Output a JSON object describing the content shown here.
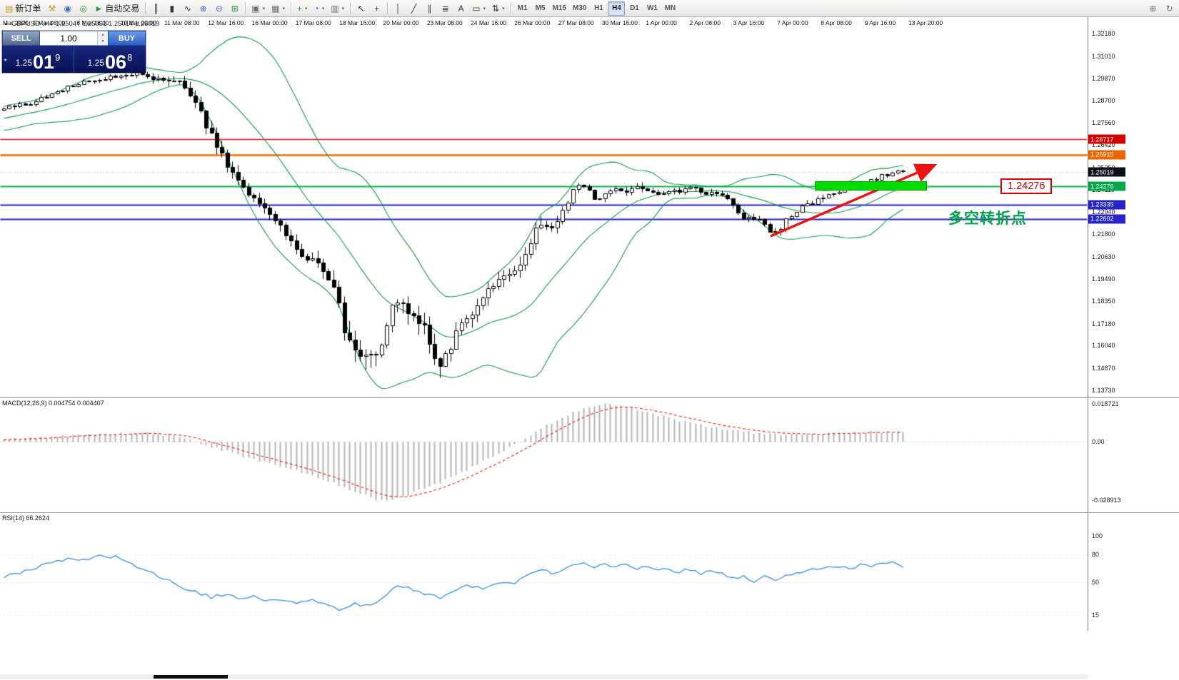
{
  "toolbar": {
    "new_order_label": "新订单",
    "autotrading_label": "自动交易",
    "timeframes": [
      "M1",
      "M5",
      "M15",
      "M30",
      "H1",
      "H4",
      "D1",
      "W1",
      "MN"
    ],
    "active_timeframe": "H4"
  },
  "icons": {
    "new_order": "▤",
    "hammer": "⚒",
    "community": "◉",
    "mql": "◎",
    "play": "►",
    "chart_bars": "║",
    "chart_candles": "▮",
    "chart_line": "∿",
    "zoom_in": "⊕",
    "zoom_out": "⊖",
    "tile": "⊞",
    "new_chart": "▣",
    "profiles": "▦",
    "indicators": "+",
    "periods": "◔",
    "templates": "▥",
    "cursor": "↖",
    "crosshair": "+",
    "vline": "│",
    "trendline": "╱",
    "channel": "∥",
    "fibo": "≣",
    "text_tool": "A",
    "shapes": "▭",
    "arrows": "⇅",
    "search": "⊕",
    "refresh": "↻",
    "collapse": "▲",
    "dropdown": "▾",
    "spin_up": "▲",
    "spin_down": "▼",
    "marker": "◂"
  },
  "chart": {
    "title": "GBPUSD-,H4",
    "quotes": "1.25047 1.25051 1.25014 1.25019"
  },
  "trade_panel": {
    "sell_label": "SELL",
    "buy_label": "BUY",
    "volume": "1.00",
    "sell_price_main": "1.25",
    "sell_price_big": "01",
    "sell_price_sup": "9",
    "buy_price_main": "1.25",
    "buy_price_big": "06",
    "buy_price_sup": "8"
  },
  "annotations": {
    "level_label": "1.24276",
    "turning_point": "多空转折点"
  },
  "main_axis_ticks": [
    "1.32180",
    "1.31010",
    "1.29870",
    "1.28700",
    "1.27560",
    "1.26420",
    "1.25250",
    "1.24110",
    "1.22940",
    "1.21800",
    "1.20630",
    "1.19490",
    "1.18350",
    "1.17180",
    "1.16040",
    "1.14870",
    "1.13730"
  ],
  "hlines": [
    {
      "price": 1.26717,
      "label": "1.26717",
      "color": "#ff1010",
      "tag": "#d40000",
      "w": 1.6
    },
    {
      "price": 1.25915,
      "label": "1.25915",
      "color": "#f06a00",
      "tag": "#ec6500",
      "w": 2.6
    },
    {
      "price": 1.24276,
      "label": "1.24276",
      "color": "#00bb4e",
      "tag": "#00a846",
      "w": 2.2
    },
    {
      "price": 1.23335,
      "label": "1.23335",
      "color": "#2222cc",
      "tag": "#2626c8",
      "w": 2.2
    },
    {
      "price": 1.22602,
      "label": "1.22602",
      "color": "#2222cc",
      "tag": "#2626c8",
      "w": 2.2
    }
  ],
  "current_price": {
    "label": "1.25019",
    "price": 1.25019,
    "tag": "#0d1118"
  },
  "macd": {
    "label": "MACD(12,26,9) 0.004754 0.004407",
    "axis": [
      {
        "t": "0.018721",
        "v": 0.018721
      },
      {
        "t": "0.00",
        "v": 0
      },
      {
        "t": "-0.028913",
        "v": -0.028913
      }
    ]
  },
  "rsi": {
    "label": "RSI(14) 66.2624",
    "axis": [
      {
        "t": "100",
        "v": 100
      },
      {
        "t": "80",
        "v": 80
      },
      {
        "t": "50",
        "v": 50
      },
      {
        "t": "15",
        "v": 15
      }
    ]
  },
  "time_axis": [
    "Mar 2020",
    "5 Mar 08:00",
    "6 Mar 16:00",
    "10 Mar 00:00",
    "11 Mar 08:00",
    "12 Mar 16:00",
    "16 Mar 00:00",
    "17 Mar 08:00",
    "18 Mar 16:00",
    "20 Mar 00:00",
    "23 Mar 08:00",
    "24 Mar 16:00",
    "26 Mar 00:00",
    "27 Mar 08:00",
    "30 Mar 16:00",
    "1 Apr 00:00",
    "2 Apr 08:00",
    "3 Apr 16:00",
    "7 Apr 00:00",
    "8 Apr 08:00",
    "9 Apr 16:00",
    "13 Apr 20:00"
  ],
  "chart_data": {
    "type": "candlestick",
    "symbol": "GBPUSD",
    "timeframe": "H4",
    "ohlc_current": {
      "open": 1.25047,
      "high": 1.25051,
      "low": 1.25014,
      "close": 1.25019
    },
    "bid": "1.25019",
    "ask": "1.25068",
    "price_axis_range": [
      1.1373,
      1.3218
    ],
    "colors": {
      "bollinger": "#0c9a4c",
      "candle_up": "#ffffff",
      "candle_down": "#000000",
      "candle_border": "#000000",
      "macd_hist": "#b4b4b4",
      "macd_signal": "#ff1414",
      "rsi_line": "#2f8fe8"
    },
    "bollinger": {
      "period": 20,
      "deviation": 2
    },
    "price_path_anchors": [
      [
        -150,
        1.272
      ],
      [
        0,
        1.283
      ],
      [
        20,
        1.2846
      ],
      [
        40,
        1.2856
      ],
      [
        60,
        1.289
      ],
      [
        80,
        1.2915
      ],
      [
        100,
        1.295
      ],
      [
        120,
        1.2972
      ],
      [
        140,
        1.2985
      ],
      [
        160,
        1.2995
      ],
      [
        180,
        1.3008
      ],
      [
        195,
        1.302
      ],
      [
        205,
        1.3
      ],
      [
        215,
        1.2985
      ],
      [
        228,
        1.2975
      ],
      [
        240,
        1.2988
      ],
      [
        252,
        1.2958
      ],
      [
        262,
        1.293
      ],
      [
        272,
        1.288
      ],
      [
        282,
        1.28
      ],
      [
        292,
        1.272
      ],
      [
        302,
        1.264
      ],
      [
        312,
        1.2575
      ],
      [
        322,
        1.251
      ],
      [
        332,
        1.2465
      ],
      [
        342,
        1.2425
      ],
      [
        352,
        1.2385
      ],
      [
        362,
        1.235
      ],
      [
        372,
        1.232
      ],
      [
        382,
        1.2285
      ],
      [
        392,
        1.2225
      ],
      [
        402,
        1.2165
      ],
      [
        412,
        1.2115
      ],
      [
        422,
        1.208
      ],
      [
        432,
        1.2062
      ],
      [
        442,
        1.2035
      ],
      [
        452,
        1.1995
      ],
      [
        462,
        1.1945
      ],
      [
        472,
        1.183
      ],
      [
        482,
        1.169
      ],
      [
        492,
        1.1605
      ],
      [
        502,
        1.1565
      ],
      [
        512,
        1.155
      ],
      [
        522,
        1.1575
      ],
      [
        532,
        1.1615
      ],
      [
        542,
        1.172
      ],
      [
        552,
        1.184
      ],
      [
        562,
        1.1805
      ],
      [
        572,
        1.1772
      ],
      [
        582,
        1.175
      ],
      [
        592,
        1.1705
      ],
      [
        602,
        1.1612
      ],
      [
        612,
        1.1528
      ],
      [
        618,
        1.1495
      ],
      [
        626,
        1.156
      ],
      [
        636,
        1.1655
      ],
      [
        646,
        1.1718
      ],
      [
        656,
        1.1762
      ],
      [
        666,
        1.1815
      ],
      [
        676,
        1.185
      ],
      [
        686,
        1.1898
      ],
      [
        696,
        1.1945
      ],
      [
        706,
        1.1978
      ],
      [
        716,
        1.1952
      ],
      [
        726,
        1.2008
      ],
      [
        736,
        1.2075
      ],
      [
        746,
        1.2175
      ],
      [
        756,
        1.2255
      ],
      [
        766,
        1.2238
      ],
      [
        776,
        1.2212
      ],
      [
        786,
        1.2278
      ],
      [
        796,
        1.2375
      ],
      [
        806,
        1.2438
      ],
      [
        816,
        1.242
      ],
      [
        826,
        1.2392
      ],
      [
        836,
        1.2362
      ],
      [
        846,
        1.2388
      ],
      [
        856,
        1.24
      ],
      [
        866,
        1.2408
      ],
      [
        876,
        1.2398
      ],
      [
        886,
        1.2418
      ],
      [
        896,
        1.2428
      ],
      [
        906,
        1.2402
      ],
      [
        916,
        1.239
      ],
      [
        926,
        1.24
      ],
      [
        936,
        1.2408
      ],
      [
        946,
        1.2398
      ],
      [
        956,
        1.2418
      ],
      [
        966,
        1.2428
      ],
      [
        976,
        1.2418
      ],
      [
        986,
        1.24
      ],
      [
        996,
        1.239
      ],
      [
        1006,
        1.2394
      ],
      [
        1016,
        1.2368
      ],
      [
        1026,
        1.233
      ],
      [
        1036,
        1.2282
      ],
      [
        1046,
        1.2262
      ],
      [
        1056,
        1.227
      ],
      [
        1066,
        1.2242
      ],
      [
        1076,
        1.2202
      ],
      [
        1086,
        1.2182
      ],
      [
        1096,
        1.2228
      ],
      [
        1106,
        1.2278
      ],
      [
        1116,
        1.2308
      ],
      [
        1126,
        1.2328
      ],
      [
        1136,
        1.234
      ],
      [
        1146,
        1.2358
      ],
      [
        1156,
        1.2378
      ],
      [
        1166,
        1.239
      ],
      [
        1176,
        1.24
      ],
      [
        1186,
        1.2418
      ],
      [
        1196,
        1.2428
      ],
      [
        1206,
        1.2438
      ],
      [
        1216,
        1.2448
      ],
      [
        1226,
        1.2468
      ],
      [
        1236,
        1.2488
      ],
      [
        1246,
        1.2498
      ],
      [
        1256,
        1.2508
      ],
      [
        1266,
        1.2502
      ]
    ],
    "volatility_anchors": [
      [
        -150,
        0.003
      ],
      [
        0,
        0.003
      ],
      [
        120,
        0.0032
      ],
      [
        200,
        0.004
      ],
      [
        280,
        0.0075
      ],
      [
        360,
        0.007
      ],
      [
        430,
        0.0075
      ],
      [
        470,
        0.0115
      ],
      [
        510,
        0.015
      ],
      [
        550,
        0.014
      ],
      [
        600,
        0.0125
      ],
      [
        640,
        0.01
      ],
      [
        700,
        0.008
      ],
      [
        745,
        0.01
      ],
      [
        800,
        0.0065
      ],
      [
        860,
        0.0042
      ],
      [
        940,
        0.004
      ],
      [
        1010,
        0.004
      ],
      [
        1060,
        0.0052
      ],
      [
        1090,
        0.005
      ],
      [
        1150,
        0.0035
      ],
      [
        1266,
        0.0032
      ]
    ],
    "macd_anchors": [
      [
        0,
        0.0012
      ],
      [
        60,
        0.0022
      ],
      [
        110,
        0.0034
      ],
      [
        160,
        0.0041
      ],
      [
        200,
        0.0044
      ],
      [
        235,
        0.0032
      ],
      [
        270,
        0.0005
      ],
      [
        310,
        -0.004
      ],
      [
        350,
        -0.008
      ],
      [
        400,
        -0.0125
      ],
      [
        450,
        -0.018
      ],
      [
        490,
        -0.024
      ],
      [
        530,
        -0.0289
      ],
      [
        565,
        -0.027
      ],
      [
        600,
        -0.0225
      ],
      [
        640,
        -0.0165
      ],
      [
        680,
        -0.0085
      ],
      [
        715,
        -0.0025
      ],
      [
        745,
        0.004
      ],
      [
        775,
        0.01
      ],
      [
        805,
        0.015
      ],
      [
        835,
        0.0187
      ],
      [
        865,
        0.0183
      ],
      [
        895,
        0.016
      ],
      [
        925,
        0.013
      ],
      [
        955,
        0.0102
      ],
      [
        990,
        0.0078
      ],
      [
        1030,
        0.0058
      ],
      [
        1070,
        0.004
      ],
      [
        1105,
        0.0034
      ],
      [
        1145,
        0.004
      ],
      [
        1185,
        0.0046
      ],
      [
        1225,
        0.0049
      ],
      [
        1266,
        0.0048
      ]
    ],
    "rsi_anchors": [
      [
        0,
        56
      ],
      [
        25,
        60
      ],
      [
        50,
        66
      ],
      [
        75,
        72
      ],
      [
        100,
        76
      ],
      [
        120,
        74
      ],
      [
        135,
        80
      ],
      [
        150,
        76
      ],
      [
        160,
        80
      ],
      [
        175,
        72
      ],
      [
        195,
        66
      ],
      [
        215,
        60
      ],
      [
        235,
        52
      ],
      [
        255,
        45
      ],
      [
        275,
        40
      ],
      [
        295,
        34
      ],
      [
        315,
        38
      ],
      [
        335,
        32
      ],
      [
        355,
        36
      ],
      [
        375,
        30
      ],
      [
        395,
        33
      ],
      [
        415,
        28
      ],
      [
        435,
        31
      ],
      [
        455,
        27
      ],
      [
        475,
        21
      ],
      [
        495,
        27
      ],
      [
        515,
        24
      ],
      [
        535,
        33
      ],
      [
        555,
        47
      ],
      [
        575,
        44
      ],
      [
        595,
        38
      ],
      [
        615,
        33
      ],
      [
        635,
        42
      ],
      [
        655,
        47
      ],
      [
        675,
        44
      ],
      [
        695,
        51
      ],
      [
        715,
        48
      ],
      [
        735,
        56
      ],
      [
        755,
        64
      ],
      [
        775,
        60
      ],
      [
        795,
        68
      ],
      [
        815,
        72
      ],
      [
        830,
        67
      ],
      [
        845,
        71
      ],
      [
        860,
        66
      ],
      [
        875,
        69
      ],
      [
        890,
        65
      ],
      [
        905,
        67
      ],
      [
        920,
        63
      ],
      [
        935,
        66
      ],
      [
        950,
        61
      ],
      [
        965,
        65
      ],
      [
        980,
        60
      ],
      [
        995,
        63
      ],
      [
        1010,
        60
      ],
      [
        1025,
        55
      ],
      [
        1040,
        57
      ],
      [
        1055,
        52
      ],
      [
        1070,
        56
      ],
      [
        1085,
        53
      ],
      [
        1100,
        58
      ],
      [
        1115,
        61
      ],
      [
        1130,
        63
      ],
      [
        1145,
        64
      ],
      [
        1160,
        66
      ],
      [
        1175,
        68
      ],
      [
        1190,
        65
      ],
      [
        1205,
        69
      ],
      [
        1220,
        66
      ],
      [
        1235,
        71
      ],
      [
        1250,
        73
      ],
      [
        1264,
        66
      ]
    ]
  }
}
